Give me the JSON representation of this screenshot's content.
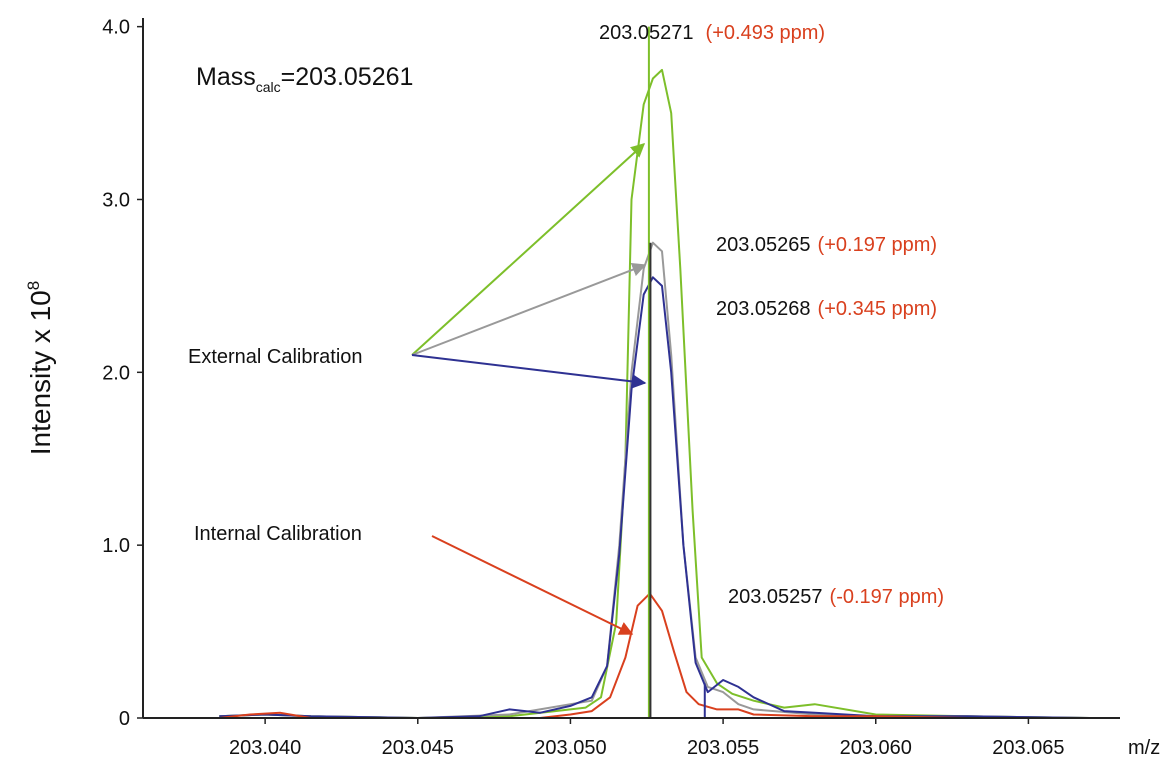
{
  "chart_data": {
    "type": "line",
    "xlabel": "m/z",
    "ylabel": "Intensity x 10",
    "ylabel_exponent": "8",
    "xlim": [
      203.036,
      203.068
    ],
    "ylim": [
      0,
      4.05
    ],
    "x_ticks": [
      203.04,
      203.045,
      203.05,
      203.055,
      203.06,
      203.065
    ],
    "x_tick_labels": [
      "203.040",
      "203.045",
      "203.050",
      "203.055",
      "203.060",
      "203.065"
    ],
    "y_ticks": [
      0,
      1.0,
      2.0,
      3.0,
      4.0
    ],
    "y_tick_labels": [
      "0",
      "1.0",
      "2.0",
      "3.0",
      "4.0"
    ],
    "mass_calc": {
      "prefix": "Mass",
      "subscript": "calc",
      "value": "=203.05261"
    },
    "series": [
      {
        "color": "#7dbf2a",
        "x": [
          203.0385,
          203.04,
          203.0415,
          203.045,
          203.048,
          203.0495,
          203.05,
          203.0505,
          203.051,
          203.0515,
          203.0518,
          203.052,
          203.0524,
          203.0527,
          203.053,
          203.0533,
          203.0536,
          203.054,
          203.0543,
          203.0548,
          203.0553,
          203.056,
          203.057,
          203.058,
          203.06,
          203.063,
          203.067
        ],
        "y": [
          0.01,
          0.02,
          0.01,
          0.0,
          0.01,
          0.04,
          0.05,
          0.06,
          0.12,
          0.55,
          1.5,
          3.0,
          3.55,
          3.7,
          3.75,
          3.5,
          2.6,
          1.2,
          0.35,
          0.2,
          0.14,
          0.1,
          0.06,
          0.08,
          0.02,
          0.01,
          0.0
        ]
      },
      {
        "color": "#999999",
        "x": [
          203.0385,
          203.04,
          203.0415,
          203.045,
          203.048,
          203.049,
          203.05,
          203.0507,
          203.0512,
          203.0516,
          203.052,
          203.0524,
          203.0527,
          203.053,
          203.0533,
          203.0537,
          203.0541,
          203.0545,
          203.055,
          203.0555,
          203.056,
          203.058,
          203.06,
          203.063,
          203.067
        ],
        "y": [
          0.01,
          0.02,
          0.01,
          0.0,
          0.02,
          0.05,
          0.08,
          0.1,
          0.3,
          1.0,
          2.0,
          2.6,
          2.75,
          2.7,
          2.1,
          1.0,
          0.35,
          0.18,
          0.15,
          0.08,
          0.05,
          0.02,
          0.01,
          0.01,
          0.0
        ]
      },
      {
        "color": "#2e3192",
        "x": [
          203.0385,
          203.04,
          203.0415,
          203.045,
          203.047,
          203.048,
          203.049,
          203.05,
          203.0507,
          203.0512,
          203.0516,
          203.052,
          203.0524,
          203.0527,
          203.053,
          203.0533,
          203.0537,
          203.0541,
          203.0545,
          203.055,
          203.0555,
          203.056,
          203.057,
          203.058,
          203.06,
          203.063,
          203.067
        ],
        "y": [
          0.01,
          0.02,
          0.01,
          0.0,
          0.01,
          0.05,
          0.03,
          0.07,
          0.12,
          0.3,
          0.95,
          1.9,
          2.45,
          2.55,
          2.5,
          2.0,
          1.0,
          0.32,
          0.15,
          0.22,
          0.18,
          0.12,
          0.04,
          0.03,
          0.01,
          0.01,
          0.0
        ]
      },
      {
        "color": "#d9401e",
        "x": [
          203.0385,
          203.0395,
          203.0405,
          203.0415,
          203.045,
          203.049,
          203.05,
          203.0507,
          203.0513,
          203.0518,
          203.0522,
          203.0526,
          203.053,
          203.0534,
          203.0538,
          203.0542,
          203.0548,
          203.0555,
          203.056,
          203.058,
          203.06,
          203.063,
          203.067
        ],
        "y": [
          0.0,
          0.02,
          0.03,
          0.0,
          0.0,
          0.0,
          0.02,
          0.04,
          0.12,
          0.35,
          0.65,
          0.72,
          0.62,
          0.38,
          0.15,
          0.08,
          0.05,
          0.05,
          0.02,
          0.01,
          0.01,
          0.0,
          0.0
        ]
      }
    ],
    "stick_lines": [
      {
        "x": 203.05257,
        "y": 4.0,
        "color": "#7dbf2a"
      },
      {
        "x": 203.05262,
        "y": 2.75,
        "color": "#333333"
      },
      {
        "x": 203.0544,
        "y": 0.2,
        "color": "#2e3192"
      }
    ],
    "peak_labels": [
      {
        "mass": "203.05271",
        "ppm": "(+0.493 ppm)"
      },
      {
        "mass": "203.05265",
        "ppm": "(+0.197 ppm)"
      },
      {
        "mass": "203.05268",
        "ppm": "(+0.345 ppm)"
      },
      {
        "mass": "203.05257",
        "ppm": "(-0.197 ppm)"
      }
    ],
    "callouts": [
      {
        "text": "External Calibration",
        "color": "#111111"
      },
      {
        "text": "Internal Calibration",
        "color": "#111111"
      }
    ]
  }
}
